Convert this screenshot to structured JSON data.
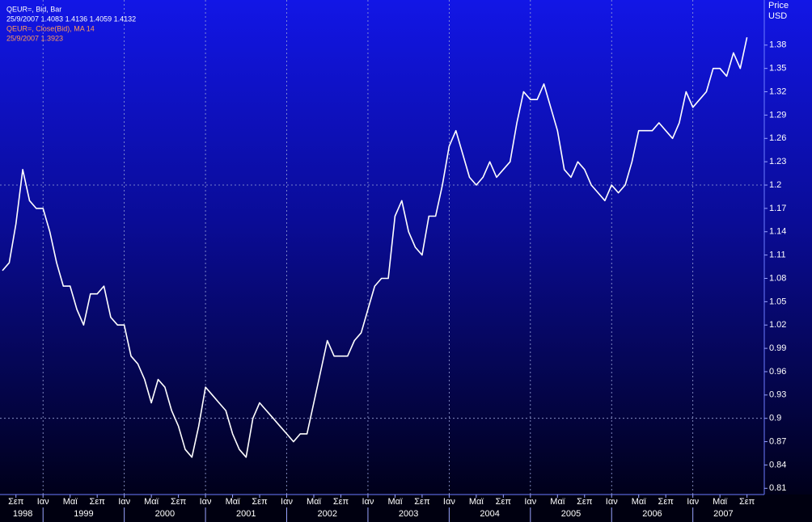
{
  "chart_data": {
    "type": "line",
    "y_label": "Price",
    "y_unit": "USD",
    "annotations": [
      "25/9/2007 1.4083 1.4136 1.4059 1.4132",
      "QEUR=, Close(Bid), MA 14",
      "25/9/2007 1.3923"
    ],
    "x": [
      "1998-07",
      "1998-08",
      "1998-09",
      "1998-10",
      "1998-11",
      "1998-12",
      "1999-01",
      "1999-02",
      "1999-03",
      "1999-04",
      "1999-05",
      "1999-06",
      "1999-07",
      "1999-08",
      "1999-09",
      "1999-10",
      "1999-11",
      "1999-12",
      "2000-01",
      "2000-02",
      "2000-03",
      "2000-04",
      "2000-05",
      "2000-06",
      "2000-07",
      "2000-08",
      "2000-09",
      "2000-10",
      "2000-11",
      "2000-12",
      "2001-01",
      "2001-02",
      "2001-03",
      "2001-04",
      "2001-05",
      "2001-06",
      "2001-07",
      "2001-08",
      "2001-09",
      "2001-10",
      "2001-11",
      "2001-12",
      "2002-01",
      "2002-02",
      "2002-03",
      "2002-04",
      "2002-05",
      "2002-06",
      "2002-07",
      "2002-08",
      "2002-09",
      "2002-10",
      "2002-11",
      "2002-12",
      "2003-01",
      "2003-02",
      "2003-03",
      "2003-04",
      "2003-05",
      "2003-06",
      "2003-07",
      "2003-08",
      "2003-09",
      "2003-10",
      "2003-11",
      "2003-12",
      "2004-01",
      "2004-02",
      "2004-03",
      "2004-04",
      "2004-05",
      "2004-06",
      "2004-07",
      "2004-08",
      "2004-09",
      "2004-10",
      "2004-11",
      "2004-12",
      "2005-01",
      "2005-02",
      "2005-03",
      "2005-04",
      "2005-05",
      "2005-06",
      "2005-07",
      "2005-08",
      "2005-09",
      "2005-10",
      "2005-11",
      "2005-12",
      "2006-01",
      "2006-02",
      "2006-03",
      "2006-04",
      "2006-05",
      "2006-06",
      "2006-07",
      "2006-08",
      "2006-09",
      "2006-10",
      "2006-11",
      "2006-12",
      "2007-01",
      "2007-02",
      "2007-03",
      "2007-04",
      "2007-05",
      "2007-06",
      "2007-07",
      "2007-08",
      "2007-09"
    ],
    "series": [
      {
        "name": "QEUR=, Bid, Bar",
        "color": "#ffffff",
        "values": [
          1.09,
          1.1,
          1.15,
          1.22,
          1.18,
          1.17,
          1.17,
          1.14,
          1.1,
          1.07,
          1.07,
          1.04,
          1.02,
          1.06,
          1.06,
          1.07,
          1.03,
          1.02,
          1.02,
          0.98,
          0.97,
          0.95,
          0.92,
          0.95,
          0.94,
          0.91,
          0.89,
          0.86,
          0.85,
          0.89,
          0.94,
          0.93,
          0.92,
          0.91,
          0.88,
          0.86,
          0.85,
          0.9,
          0.92,
          0.91,
          0.9,
          0.89,
          0.88,
          0.87,
          0.88,
          0.88,
          0.92,
          0.96,
          1.0,
          0.98,
          0.98,
          0.98,
          1.0,
          1.01,
          1.04,
          1.07,
          1.08,
          1.08,
          1.16,
          1.18,
          1.14,
          1.12,
          1.11,
          1.16,
          1.16,
          1.2,
          1.25,
          1.27,
          1.24,
          1.21,
          1.2,
          1.21,
          1.23,
          1.21,
          1.22,
          1.23,
          1.28,
          1.32,
          1.31,
          1.31,
          1.33,
          1.3,
          1.27,
          1.22,
          1.21,
          1.23,
          1.22,
          1.2,
          1.19,
          1.18,
          1.2,
          1.19,
          1.2,
          1.23,
          1.27,
          1.27,
          1.27,
          1.28,
          1.27,
          1.26,
          1.28,
          1.32,
          1.3,
          1.31,
          1.32,
          1.35,
          1.35,
          1.34,
          1.37,
          1.35,
          1.39
        ]
      }
    ],
    "xlim": [
      "1998-07",
      "2007-10"
    ],
    "xticks": [
      {
        "value": "1998-09",
        "label": "Σεπ"
      },
      {
        "value": "1999-01",
        "label": "Ιαν"
      },
      {
        "value": "1999-05",
        "label": "Μαϊ"
      },
      {
        "value": "1999-09",
        "label": "Σεπ"
      },
      {
        "value": "2000-01",
        "label": "Ιαν"
      },
      {
        "value": "2000-05",
        "label": "Μαϊ"
      },
      {
        "value": "2000-09",
        "label": "Σεπ"
      },
      {
        "value": "2001-01",
        "label": "Ιαν"
      },
      {
        "value": "2001-05",
        "label": "Μαϊ"
      },
      {
        "value": "2001-09",
        "label": "Σεπ"
      },
      {
        "value": "2002-01",
        "label": "Ιαν"
      },
      {
        "value": "2002-05",
        "label": "Μαϊ"
      },
      {
        "value": "2002-09",
        "label": "Σεπ"
      },
      {
        "value": "2003-01",
        "label": "Ιαν"
      },
      {
        "value": "2003-05",
        "label": "Μαϊ"
      },
      {
        "value": "2003-09",
        "label": "Σεπ"
      },
      {
        "value": "2004-01",
        "label": "Ιαν"
      },
      {
        "value": "2004-05",
        "label": "Μαϊ"
      },
      {
        "value": "2004-09",
        "label": "Σεπ"
      },
      {
        "value": "2005-01",
        "label": "Ιαν"
      },
      {
        "value": "2005-05",
        "label": "Μαϊ"
      },
      {
        "value": "2005-09",
        "label": "Σεπ"
      },
      {
        "value": "2006-01",
        "label": "Ιαν"
      },
      {
        "value": "2006-05",
        "label": "Μαϊ"
      },
      {
        "value": "2006-09",
        "label": "Σεπ"
      },
      {
        "value": "2007-01",
        "label": "Ιαν"
      },
      {
        "value": "2007-05",
        "label": "Μαϊ"
      },
      {
        "value": "2007-09",
        "label": "Σεπ"
      }
    ],
    "years": [
      1998,
      1999,
      2000,
      2001,
      2002,
      2003,
      2004,
      2005,
      2006,
      2007
    ],
    "ylim": [
      0.802,
      1.438
    ],
    "yticks": [
      0.81,
      0.84,
      0.87,
      0.9,
      0.93,
      0.96,
      0.99,
      1.02,
      1.05,
      1.08,
      1.11,
      1.14,
      1.17,
      1.2,
      1.23,
      1.26,
      1.29,
      1.32,
      1.35,
      1.38
    ],
    "y_grid_values": [
      0.9,
      1.2
    ],
    "grid": true
  }
}
